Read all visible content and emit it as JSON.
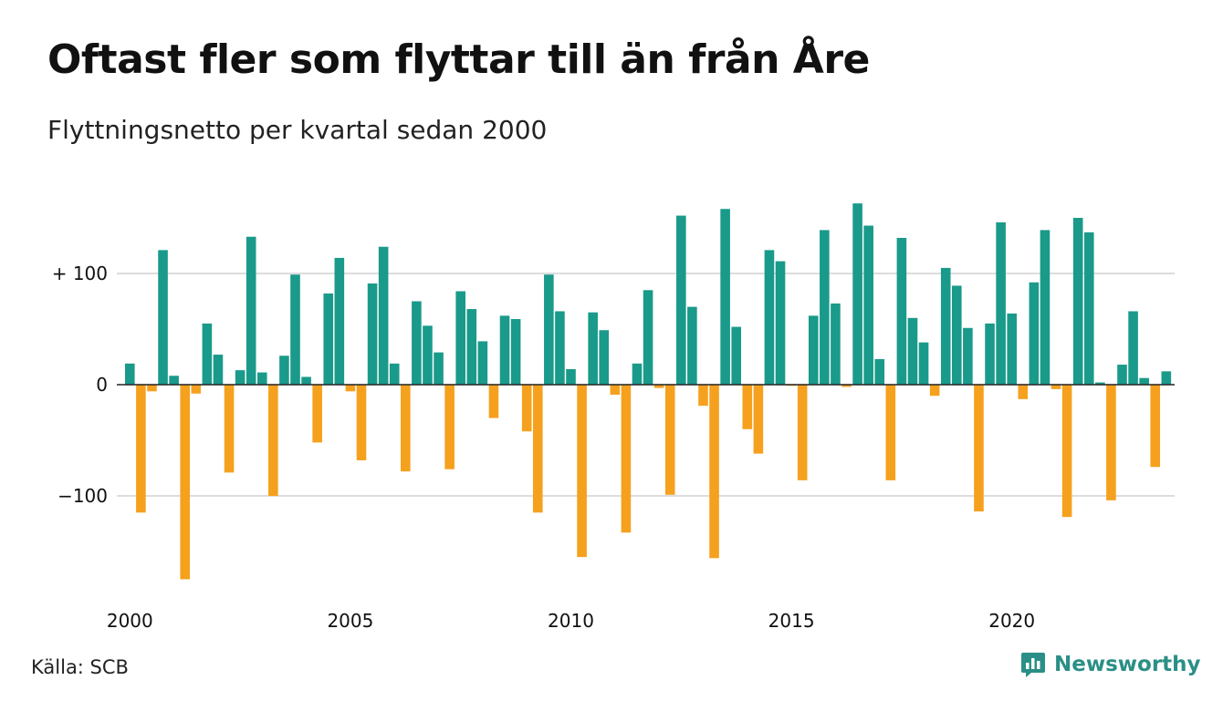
{
  "title": "Oftast fler som flyttar till än från Åre",
  "subtitle": "Flyttningsnetto per kvartal sedan 2000",
  "source": "Källa: SCB",
  "brand": {
    "name": "Newsworthy",
    "icon": "newsworthy-logo-icon"
  },
  "colors": {
    "positive": "#1a9a8a",
    "negative": "#f5a11e",
    "gridline": "#dddddd",
    "zeroline": "#222222",
    "brand": "#2a8f86"
  },
  "chart_data": {
    "type": "bar",
    "title": "Oftast fler som flyttar till än från Åre",
    "subtitle": "Flyttningsnetto per kvartal sedan 2000",
    "xlabel": "",
    "ylabel": "",
    "grid": true,
    "ylim": [
      -185,
      175
    ],
    "yticks": [
      100,
      0,
      -100
    ],
    "ytick_labels": [
      "+ 100",
      "0",
      "−100"
    ],
    "xtick_labels": [
      "2000",
      "2005",
      "2010",
      "2015",
      "2020"
    ],
    "series": [
      {
        "period_start": "2000 Q1",
        "values": [
          19,
          -115,
          -6,
          121,
          8,
          -175,
          -8,
          55,
          27,
          -79,
          13,
          133,
          11,
          -100,
          26,
          99,
          7,
          -52,
          82,
          114,
          -6,
          -68,
          91,
          124,
          19,
          -78,
          75,
          53,
          29,
          -76,
          84,
          68,
          39,
          -30,
          62,
          59,
          -42,
          -115,
          99,
          66,
          14,
          -155,
          65,
          49,
          -9,
          -133,
          19,
          85,
          -3,
          -99,
          152,
          70,
          -19,
          -156,
          158,
          52,
          -40,
          -62,
          121,
          111,
          -1,
          -86,
          62,
          139,
          73,
          -2,
          163,
          143,
          23,
          -86,
          132,
          60,
          38,
          -10,
          105,
          89,
          51,
          -114,
          55,
          146,
          64,
          -13,
          92,
          139,
          -4,
          -119,
          150,
          137,
          2,
          -104,
          18,
          66,
          6,
          -74,
          12
        ]
      }
    ]
  }
}
